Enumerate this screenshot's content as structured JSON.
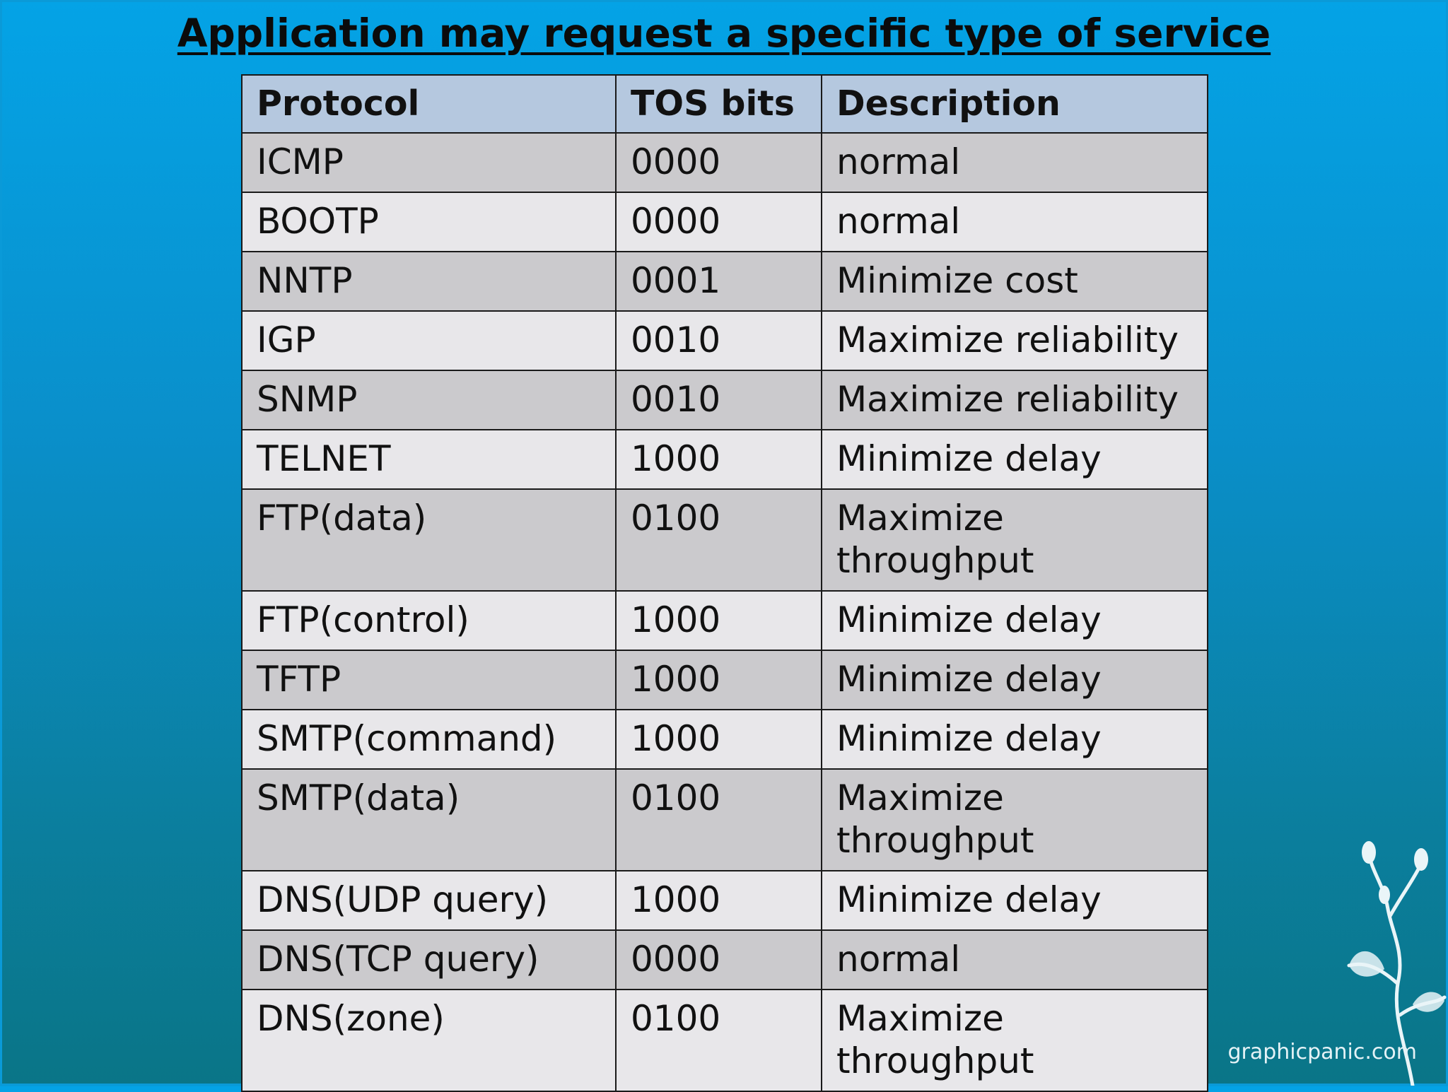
{
  "title": "Application may request a specific type of service",
  "table": {
    "headers": [
      "Protocol",
      "TOS bits",
      "Description"
    ],
    "rows": [
      [
        "ICMP",
        "0000",
        "normal"
      ],
      [
        "BOOTP",
        "0000",
        "normal"
      ],
      [
        "NNTP",
        "0001",
        "Minimize cost"
      ],
      [
        "IGP",
        "0010",
        "Maximize reliability"
      ],
      [
        "SNMP",
        "0010",
        "Maximize reliability"
      ],
      [
        "TELNET",
        "1000",
        "Minimize delay"
      ],
      [
        "FTP(data)",
        "0100",
        "Maximize throughput"
      ],
      [
        "FTP(control)",
        "1000",
        "Minimize delay"
      ],
      [
        "TFTP",
        "1000",
        "Minimize delay"
      ],
      [
        "SMTP(command)",
        "1000",
        "Minimize delay"
      ],
      [
        "SMTP(data)",
        "0100",
        "Maximize throughput"
      ],
      [
        "DNS(UDP query)",
        "1000",
        "Minimize delay"
      ],
      [
        "DNS(TCP query)",
        "0000",
        "normal"
      ],
      [
        "DNS(zone)",
        "0100",
        "Maximize throughput"
      ]
    ]
  },
  "watermark": "graphicpanic.com",
  "colors": {
    "header_bg": "#b5c8df",
    "row_dark": "#cbcacd",
    "row_light": "#e8e7ea",
    "background_top": "#04a3e6",
    "background_bottom": "#0a7587"
  }
}
